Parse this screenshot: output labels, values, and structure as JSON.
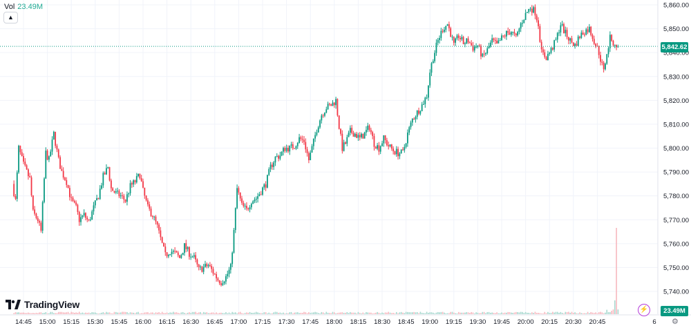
{
  "header": {
    "vol_label": "Vol",
    "vol_value": "23.49M",
    "collapse_icon": "chevron-up-icon"
  },
  "brand": {
    "name": "TradingView",
    "icon": "tradingview-logo-icon"
  },
  "price_axis": {
    "current_price": "5,842.62",
    "volume_value": "23.49M",
    "corner_label": "6"
  },
  "colors": {
    "up": "#089981",
    "down": "#f23645",
    "vol_up": "#a8d8cf",
    "vol_down": "#f7b8bf",
    "last_line": "#089981"
  },
  "chart_data": {
    "type": "candlestick",
    "interval_minutes": 1,
    "y_ticks": [
      5740,
      5750,
      5760,
      5770,
      5780,
      5790,
      5800,
      5810,
      5820,
      5830,
      5840,
      5850,
      5860
    ],
    "y_tick_labels": [
      "5,740.00",
      "5,750.00",
      "5,760.00",
      "5,770.00",
      "5,780.00",
      "5,790.00",
      "5,800.00",
      "5,810.00",
      "5,820.00",
      "5,830.00",
      "5,840.00",
      "5,850.00",
      "5,860.00"
    ],
    "x_tick_labels": [
      "14:45",
      "15:00",
      "15:15",
      "15:30",
      "15:45",
      "16:00",
      "16:15",
      "16:30",
      "16:45",
      "17:00",
      "17:15",
      "17:30",
      "17:45",
      "18:00",
      "18:15",
      "18:30",
      "18:45",
      "19:00",
      "19:15",
      "19:30",
      "19:45",
      "20:00",
      "20:15",
      "20:30",
      "20:45"
    ],
    "ylim": [
      5735,
      5862
    ],
    "last_price": 5842.62,
    "keypoints": [
      [
        "14:39",
        5785
      ],
      [
        "14:41",
        5778
      ],
      [
        "14:43",
        5800
      ],
      [
        "14:46",
        5793
      ],
      [
        "14:50",
        5787
      ],
      [
        "14:52",
        5773
      ],
      [
        "14:55",
        5770
      ],
      [
        "14:57",
        5765
      ],
      [
        "15:00",
        5798
      ],
      [
        "15:02",
        5795
      ],
      [
        "15:05",
        5806
      ],
      [
        "15:08",
        5795
      ],
      [
        "15:10",
        5790
      ],
      [
        "15:13",
        5786
      ],
      [
        "15:16",
        5778
      ],
      [
        "15:19",
        5775
      ],
      [
        "15:21",
        5770
      ],
      [
        "15:24",
        5772
      ],
      [
        "15:27",
        5769
      ],
      [
        "15:30",
        5775
      ],
      [
        "15:33",
        5780
      ],
      [
        "15:36",
        5788
      ],
      [
        "15:39",
        5792
      ],
      [
        "15:41",
        5783
      ],
      [
        "15:44",
        5781
      ],
      [
        "15:47",
        5780
      ],
      [
        "15:50",
        5778
      ],
      [
        "15:53",
        5784
      ],
      [
        "15:56",
        5786
      ],
      [
        "15:59",
        5789
      ],
      [
        "16:01",
        5782
      ],
      [
        "16:04",
        5775
      ],
      [
        "16:07",
        5772
      ],
      [
        "16:10",
        5767
      ],
      [
        "16:12",
        5762
      ],
      [
        "16:15",
        5755
      ],
      [
        "16:18",
        5757
      ],
      [
        "16:21",
        5756
      ],
      [
        "16:24",
        5754
      ],
      [
        "16:27",
        5759
      ],
      [
        "16:30",
        5756
      ],
      [
        "16:33",
        5754
      ],
      [
        "16:36",
        5749
      ],
      [
        "16:39",
        5750
      ],
      [
        "16:42",
        5751
      ],
      [
        "16:45",
        5748
      ],
      [
        "16:48",
        5745
      ],
      [
        "16:50",
        5744
      ],
      [
        "16:53",
        5746
      ],
      [
        "16:56",
        5750
      ],
      [
        "16:58",
        5765
      ],
      [
        "17:00",
        5783
      ],
      [
        "17:03",
        5776
      ],
      [
        "17:06",
        5774
      ],
      [
        "17:09",
        5778
      ],
      [
        "17:12",
        5779
      ],
      [
        "17:15",
        5782
      ],
      [
        "17:18",
        5785
      ],
      [
        "17:21",
        5792
      ],
      [
        "17:24",
        5796
      ],
      [
        "17:27",
        5797
      ],
      [
        "17:30",
        5800
      ],
      [
        "17:33",
        5800
      ],
      [
        "17:36",
        5801
      ],
      [
        "17:39",
        5804
      ],
      [
        "17:42",
        5803
      ],
      [
        "17:45",
        5795
      ],
      [
        "17:47",
        5800
      ],
      [
        "17:50",
        5808
      ],
      [
        "17:53",
        5814
      ],
      [
        "17:56",
        5817
      ],
      [
        "17:59",
        5818
      ],
      [
        "18:02",
        5820
      ],
      [
        "18:04",
        5809
      ],
      [
        "18:06",
        5800
      ],
      [
        "18:08",
        5802
      ],
      [
        "18:11",
        5807
      ],
      [
        "18:14",
        5806
      ],
      [
        "18:17",
        5804
      ],
      [
        "18:20",
        5806
      ],
      [
        "18:23",
        5809
      ],
      [
        "18:26",
        5802
      ],
      [
        "18:29",
        5800
      ],
      [
        "18:32",
        5804
      ],
      [
        "18:35",
        5801
      ],
      [
        "18:38",
        5799
      ],
      [
        "18:41",
        5798
      ],
      [
        "18:44",
        5798
      ],
      [
        "18:47",
        5806
      ],
      [
        "18:50",
        5812
      ],
      [
        "18:53",
        5815
      ],
      [
        "18:56",
        5818
      ],
      [
        "18:59",
        5822
      ],
      [
        "19:01",
        5832
      ],
      [
        "19:03",
        5838
      ],
      [
        "19:06",
        5845
      ],
      [
        "19:09",
        5850
      ],
      [
        "19:12",
        5852
      ],
      [
        "19:14",
        5848
      ],
      [
        "19:16",
        5843
      ],
      [
        "19:19",
        5847
      ],
      [
        "19:22",
        5844
      ],
      [
        "19:25",
        5845
      ],
      [
        "19:28",
        5842
      ],
      [
        "19:31",
        5843
      ],
      [
        "19:34",
        5838
      ],
      [
        "19:37",
        5841
      ],
      [
        "19:40",
        5845
      ],
      [
        "19:43",
        5843
      ],
      [
        "19:46",
        5846
      ],
      [
        "19:49",
        5848
      ],
      [
        "19:52",
        5849
      ],
      [
        "19:55",
        5846
      ],
      [
        "19:58",
        5852
      ],
      [
        "20:01",
        5856
      ],
      [
        "20:04",
        5859
      ],
      [
        "20:07",
        5857
      ],
      [
        "20:09",
        5852
      ],
      [
        "20:11",
        5840
      ],
      [
        "20:14",
        5838
      ],
      [
        "20:17",
        5841
      ],
      [
        "20:20",
        5845
      ],
      [
        "20:23",
        5852
      ],
      [
        "20:26",
        5848
      ],
      [
        "20:29",
        5845
      ],
      [
        "20:32",
        5843
      ],
      [
        "20:35",
        5847
      ],
      [
        "20:38",
        5849
      ],
      [
        "20:41",
        5850
      ],
      [
        "20:44",
        5845
      ],
      [
        "20:47",
        5840
      ],
      [
        "20:50",
        5832
      ],
      [
        "20:52",
        5840
      ],
      [
        "20:54",
        5846
      ],
      [
        "20:56",
        5844
      ],
      [
        "20:58",
        5843
      ]
    ]
  }
}
